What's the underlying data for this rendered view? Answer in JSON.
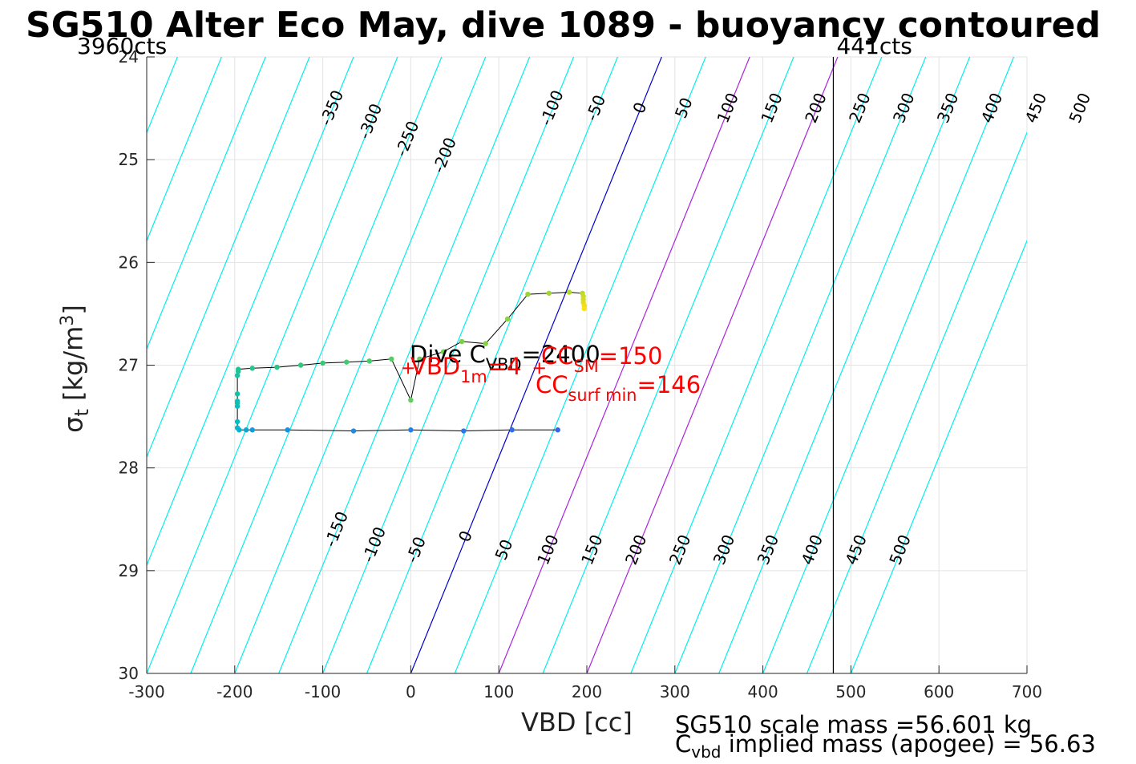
{
  "title": "SG510 Alter Eco May, dive 1089 - buoyancy contoured",
  "footer": {
    "scale_mass": "SG510 scale mass =56.601 kg",
    "implied_mass_sym": "C",
    "implied_mass_sub": "vbd",
    "implied_mass_rest": " implied mass (apogee) = 56.63"
  },
  "chart_data": {
    "type": "scatter",
    "xlabel": "VBD [cc]",
    "ylabel_sym": "σ",
    "ylabel_sub": "t",
    "ylabel_unit": " [kg/m",
    "ylabel_sup": "3",
    "ylabel_close": "]",
    "xlim": [
      -300,
      700
    ],
    "ylim": [
      30,
      24
    ],
    "y_reversed": true,
    "grid": true,
    "xticks": [
      -300,
      -200,
      -100,
      0,
      100,
      200,
      300,
      400,
      500,
      600,
      700
    ],
    "yticks": [
      24,
      25,
      26,
      27,
      28,
      29,
      30
    ],
    "xtick_labels": [
      "-300",
      "-200",
      "-100",
      "0",
      "100",
      "200",
      "300",
      "400",
      "500",
      "600",
      "700"
    ],
    "ytick_labels": [
      "24",
      "25",
      "26",
      "27",
      "28",
      "29",
      "30"
    ],
    "top_annotations": {
      "left": "3960cts",
      "right": "441cts",
      "right_line_x": 480
    },
    "contours": {
      "levels": [
        -350,
        -300,
        -250,
        -200,
        -150,
        -100,
        -50,
        0,
        50,
        100,
        150,
        200,
        250,
        300,
        350,
        400,
        450,
        500
      ],
      "labels_upper": [
        "-350",
        "-300",
        "-250",
        "-200",
        "-100",
        "-50",
        "0",
        "50",
        "100",
        "150",
        "200",
        "250",
        "300",
        "350",
        "400",
        "450",
        "500"
      ],
      "labels_upper_levels": [
        -350,
        -300,
        -250,
        -200,
        -100,
        -50,
        0,
        50,
        100,
        150,
        200,
        250,
        300,
        350,
        400,
        450,
        500
      ],
      "labels_lower": [
        "-150",
        "-100",
        "-50",
        "0",
        "50",
        "100",
        "150",
        "200",
        "250",
        "300",
        "350",
        "400",
        "450",
        "500"
      ],
      "labels_lower_levels": [
        -150,
        -100,
        -50,
        0,
        50,
        100,
        150,
        200,
        250,
        300,
        350,
        400,
        450,
        500
      ],
      "slope_cc_per_sigma": -47.5,
      "zero_color": "#0000cc",
      "highlight_levels": [
        100,
        200
      ],
      "highlight_color": "#aa22dd",
      "default_color": "#00eeee"
    },
    "path": [
      [
        167,
        27.63
      ],
      [
        115,
        27.63
      ],
      [
        60,
        27.64
      ],
      [
        0,
        27.63
      ],
      [
        -65,
        27.64
      ],
      [
        -140,
        27.63
      ],
      [
        -180,
        27.63
      ],
      [
        -187,
        27.63
      ],
      [
        -195,
        27.63
      ],
      [
        -197,
        27.61
      ],
      [
        -197,
        27.55
      ],
      [
        -197,
        27.4
      ],
      [
        -197,
        27.37
      ],
      [
        -197,
        27.35
      ],
      [
        -197,
        27.28
      ],
      [
        -197,
        27.1
      ],
      [
        -196,
        27.06
      ],
      [
        -196,
        27.04
      ],
      [
        -180,
        27.03
      ],
      [
        -152,
        27.02
      ],
      [
        -125,
        27.0
      ],
      [
        -100,
        26.98
      ],
      [
        -73,
        26.97
      ],
      [
        -47,
        26.96
      ],
      [
        -22,
        26.94
      ],
      [
        0,
        27.34
      ],
      [
        10,
        26.94
      ],
      [
        37,
        26.87
      ],
      [
        58,
        26.77
      ],
      [
        85,
        26.79
      ],
      [
        110,
        26.55
      ],
      [
        133,
        26.31
      ],
      [
        157,
        26.3
      ],
      [
        180,
        26.29
      ],
      [
        195,
        26.3
      ],
      [
        196,
        26.35
      ],
      [
        196,
        26.4
      ],
      [
        196,
        26.45
      ]
    ],
    "points_dive": [
      [
        167,
        27.63
      ],
      [
        115,
        27.63
      ],
      [
        60,
        27.64
      ],
      [
        0,
        27.63
      ],
      [
        -65,
        27.64
      ],
      [
        -140,
        27.63
      ],
      [
        -180,
        27.63
      ],
      [
        -187,
        27.63
      ],
      [
        -195,
        27.63
      ],
      [
        -197,
        27.61
      ],
      [
        -197,
        27.55
      ],
      [
        -197,
        27.4
      ],
      [
        -197,
        27.37
      ],
      [
        -197,
        27.35
      ],
      [
        -197,
        27.28
      ],
      [
        -197,
        27.1
      ]
    ],
    "points_climb": [
      [
        -196,
        27.06
      ],
      [
        -196,
        27.04
      ],
      [
        -180,
        27.03
      ],
      [
        -152,
        27.02
      ],
      [
        -125,
        27.0
      ],
      [
        -100,
        26.98
      ],
      [
        -73,
        26.97
      ],
      [
        -47,
        26.96
      ],
      [
        -22,
        26.94
      ],
      [
        0,
        27.34
      ],
      [
        10,
        26.94
      ],
      [
        37,
        26.87
      ],
      [
        58,
        26.77
      ],
      [
        85,
        26.79
      ],
      [
        110,
        26.55
      ],
      [
        133,
        26.31
      ],
      [
        157,
        26.3
      ],
      [
        180,
        26.29
      ],
      [
        195,
        26.3
      ],
      [
        196,
        26.33
      ]
    ],
    "points_surface": [
      [
        196,
        26.36
      ],
      [
        196,
        26.39
      ],
      [
        197,
        26.42
      ],
      [
        197,
        26.45
      ]
    ],
    "annotations": {
      "dive_c_pre": "Dive C",
      "dive_c_sub": "VBD",
      "dive_c_post": "=2400",
      "vbd1m_pre": "VBD",
      "vbd1m_sub": "1m",
      "vbd1m_post": "=4",
      "cc_sm_pre": "CC",
      "cc_sm_sub": "SM",
      "cc_sm_post": "=150",
      "cc_surf_pre": "CC",
      "cc_surf_sub": "surf min",
      "cc_surf_post": "=146",
      "red_color": "#ff0000"
    }
  }
}
